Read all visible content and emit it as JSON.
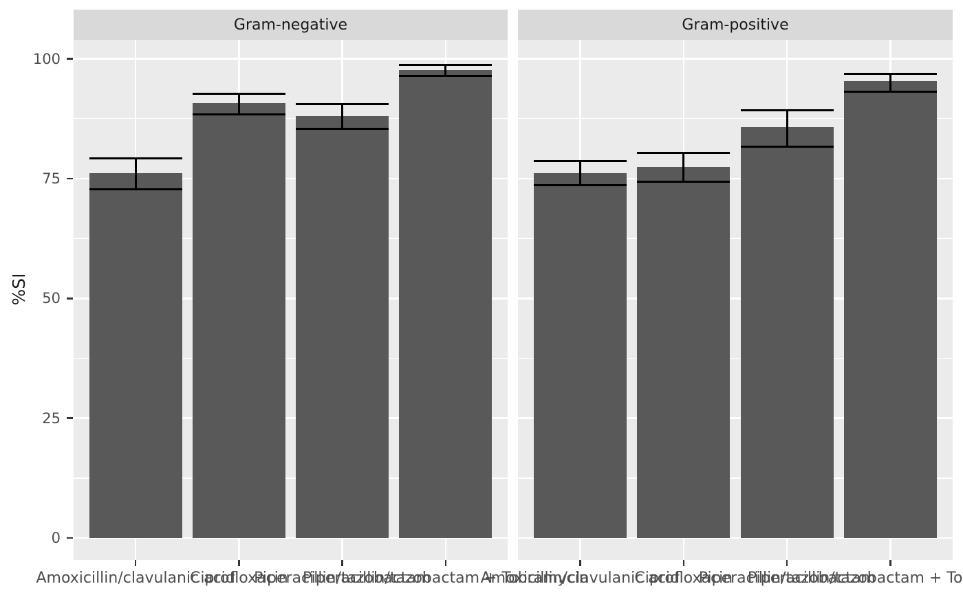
{
  "chart_data": {
    "type": "bar",
    "title": "",
    "xlabel": "",
    "ylabel": "%SI",
    "ylim": [
      0,
      100
    ],
    "y_major_ticks": [
      0,
      25,
      50,
      75,
      100
    ],
    "y_minor_ticks": [
      12.5,
      37.5,
      62.5,
      87.5
    ],
    "grid": "on",
    "legend": "none",
    "bar_style": "mean with error bars (ymin/ymax caps same width as bar)",
    "facets": [
      {
        "label": "Gram-negative",
        "categories": [
          "Amoxicillin/clavulanic acid",
          "Ciprofloxacin",
          "Piperacillin/tazobactam",
          "Piperacillin/tazobactam + Tobramycin"
        ],
        "values": [
          76.1,
          90.8,
          88.0,
          97.6
        ],
        "error_low": [
          72.8,
          88.4,
          85.4,
          96.4
        ],
        "error_high": [
          79.2,
          92.7,
          90.5,
          98.7
        ]
      },
      {
        "label": "Gram-positive",
        "categories": [
          "Amoxicillin/clavulanic acid",
          "Ciprofloxacin",
          "Piperacillin/tazobactam",
          "Piperacillin/tazobactam + Tobramycin"
        ],
        "values": [
          76.1,
          77.4,
          85.7,
          95.3
        ],
        "error_low": [
          73.6,
          74.4,
          81.7,
          93.1
        ],
        "error_high": [
          78.7,
          80.4,
          89.3,
          96.8
        ]
      }
    ],
    "colors": {
      "bar_fill": "#595959",
      "error_bar": "#000000",
      "panel_background": "#EBEBEB",
      "strip_background": "#D9D9D9",
      "gridline": "#FFFFFF",
      "axis_text": "#4D4D4D",
      "strip_text": "#1A1A1A",
      "tick_mark": "#333333",
      "plot_background": "#FFFFFF"
    }
  }
}
